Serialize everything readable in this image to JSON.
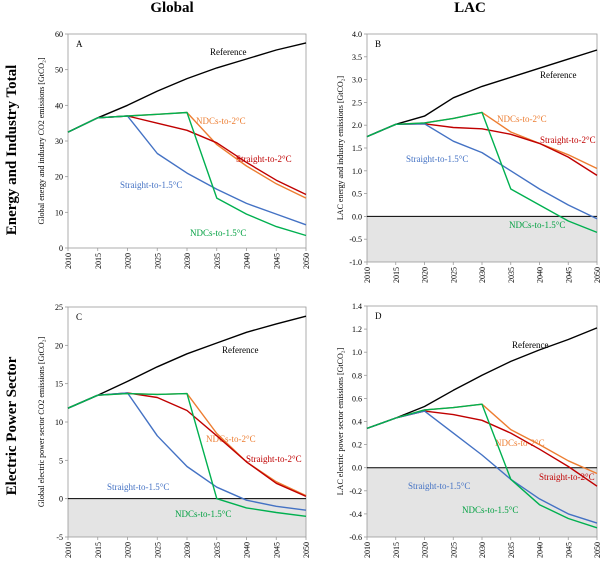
{
  "column_titles": [
    "Global",
    "LAC"
  ],
  "row_titles": [
    "Energy and Industry Total",
    "Electric Power Sector"
  ],
  "chart_data": [
    {
      "type": "line",
      "panel": "A",
      "ylabel": "Global energy and industry CO2 emissions [GtCO₂]",
      "x": [
        2010,
        2015,
        2020,
        2025,
        2030,
        2035,
        2040,
        2045,
        2050
      ],
      "ylim": [
        0,
        60
      ],
      "yticks": [
        0,
        10,
        20,
        30,
        40,
        50,
        60
      ],
      "shade_below_zero": false,
      "series": [
        {
          "name": "Reference",
          "color": "#000000",
          "label_color": "#000000",
          "values": [
            32.5,
            36.5,
            40.0,
            44.0,
            47.5,
            50.5,
            53.0,
            55.5,
            57.5
          ]
        },
        {
          "name": "NDCs-to-2°C",
          "color": "#ed7d31",
          "label_color": "#ed7d31",
          "values": [
            32.5,
            36.5,
            37.0,
            37.5,
            38.0,
            29.0,
            23.0,
            18.0,
            14.0
          ]
        },
        {
          "name": "Straight-to-2°C",
          "color": "#c00000",
          "label_color": "#c00000",
          "values": [
            32.5,
            36.5,
            37.0,
            35.0,
            33.0,
            29.5,
            24.0,
            19.0,
            15.0
          ]
        },
        {
          "name": "Straight-to-1.5°C",
          "color": "#4472c4",
          "label_color": "#4472c4",
          "values": [
            32.5,
            36.5,
            37.0,
            26.5,
            21.0,
            16.5,
            12.5,
            9.5,
            6.5
          ]
        },
        {
          "name": "NDCs-to-1.5°C",
          "color": "#00b050",
          "label_color": "#00a040",
          "values": [
            32.5,
            36.5,
            37.0,
            37.5,
            38.0,
            14.0,
            9.5,
            6.0,
            3.5
          ]
        }
      ]
    },
    {
      "type": "line",
      "panel": "B",
      "ylabel": "LAC energy and industry emissions [GtCO₂]",
      "x": [
        2010,
        2015,
        2020,
        2025,
        2030,
        2035,
        2040,
        2045,
        2050
      ],
      "ylim": [
        -1.0,
        4.0
      ],
      "yticks": [
        -1.0,
        -0.5,
        0.0,
        0.5,
        1.0,
        1.5,
        2.0,
        2.5,
        3.0,
        3.5,
        4.0
      ],
      "shade_below_zero": true,
      "series": [
        {
          "name": "Reference",
          "color": "#000000",
          "label_color": "#000000",
          "values": [
            1.75,
            2.02,
            2.2,
            2.6,
            2.85,
            3.05,
            3.25,
            3.45,
            3.65
          ]
        },
        {
          "name": "NDCs-to-2°C",
          "color": "#ed7d31",
          "label_color": "#ed7d31",
          "values": [
            1.75,
            2.02,
            2.05,
            2.15,
            2.28,
            1.85,
            1.6,
            1.35,
            1.05
          ]
        },
        {
          "name": "Straight-to-2°C",
          "color": "#c00000",
          "label_color": "#c00000",
          "values": [
            1.75,
            2.02,
            2.03,
            1.95,
            1.92,
            1.8,
            1.6,
            1.3,
            0.9
          ]
        },
        {
          "name": "Straight-to-1.5°C",
          "color": "#4472c4",
          "label_color": "#4472c4",
          "values": [
            1.75,
            2.02,
            2.03,
            1.65,
            1.4,
            1.0,
            0.6,
            0.25,
            -0.05
          ]
        },
        {
          "name": "NDCs-to-1.5°C",
          "color": "#00b050",
          "label_color": "#00a040",
          "values": [
            1.75,
            2.02,
            2.05,
            2.15,
            2.28,
            0.6,
            0.25,
            -0.1,
            -0.35
          ]
        }
      ]
    },
    {
      "type": "line",
      "panel": "C",
      "ylabel": "Global electric power sector CO2 emissions [GtCO₂]",
      "x": [
        2010,
        2015,
        2020,
        2025,
        2030,
        2035,
        2040,
        2045,
        2050
      ],
      "ylim": [
        -5,
        25
      ],
      "yticks": [
        -5,
        0,
        5,
        10,
        15,
        20,
        25
      ],
      "shade_below_zero": true,
      "series": [
        {
          "name": "Reference",
          "color": "#000000",
          "label_color": "#000000",
          "values": [
            11.8,
            13.5,
            15.3,
            17.2,
            18.9,
            20.3,
            21.7,
            22.8,
            23.8
          ]
        },
        {
          "name": "NDCs-to-2°C",
          "color": "#ed7d31",
          "label_color": "#ed7d31",
          "values": [
            11.8,
            13.5,
            13.7,
            13.6,
            13.7,
            8.5,
            4.8,
            2.2,
            0.4
          ]
        },
        {
          "name": "Straight-to-2°C",
          "color": "#c00000",
          "label_color": "#c00000",
          "values": [
            11.8,
            13.5,
            13.8,
            13.2,
            11.5,
            8.2,
            4.8,
            2.0,
            0.3
          ]
        },
        {
          "name": "Straight-to-1.5°C",
          "color": "#4472c4",
          "label_color": "#4472c4",
          "values": [
            11.8,
            13.5,
            13.8,
            8.2,
            4.2,
            1.5,
            -0.2,
            -1.0,
            -1.5
          ]
        },
        {
          "name": "NDCs-to-1.5°C",
          "color": "#00b050",
          "label_color": "#00a040",
          "values": [
            11.8,
            13.5,
            13.7,
            13.6,
            13.7,
            0.0,
            -1.2,
            -1.8,
            -2.3
          ]
        }
      ]
    },
    {
      "type": "line",
      "panel": "D",
      "ylabel": "LAC electric power sector emissions [GtCO₂]",
      "x": [
        2010,
        2015,
        2020,
        2025,
        2030,
        2035,
        2040,
        2045,
        2050
      ],
      "ylim": [
        -0.6,
        1.4
      ],
      "yticks": [
        -0.6,
        -0.4,
        -0.2,
        0.0,
        0.2,
        0.4,
        0.6,
        0.8,
        1.0,
        1.2,
        1.4
      ],
      "shade_below_zero": true,
      "series": [
        {
          "name": "Reference",
          "color": "#000000",
          "label_color": "#000000",
          "values": [
            0.34,
            0.43,
            0.53,
            0.67,
            0.8,
            0.92,
            1.02,
            1.11,
            1.21
          ]
        },
        {
          "name": "NDCs-to-2°C",
          "color": "#ed7d31",
          "label_color": "#ed7d31",
          "values": [
            0.34,
            0.43,
            0.5,
            0.52,
            0.55,
            0.33,
            0.2,
            0.06,
            -0.05
          ]
        },
        {
          "name": "Straight-to-2°C",
          "color": "#c00000",
          "label_color": "#c00000",
          "values": [
            0.34,
            0.43,
            0.49,
            0.46,
            0.41,
            0.3,
            0.16,
            0.01,
            -0.16
          ]
        },
        {
          "name": "Straight-to-1.5°C",
          "color": "#4472c4",
          "label_color": "#4472c4",
          "values": [
            0.34,
            0.43,
            0.49,
            0.3,
            0.11,
            -0.1,
            -0.27,
            -0.4,
            -0.48
          ]
        },
        {
          "name": "NDCs-to-1.5°C",
          "color": "#00b050",
          "label_color": "#00a040",
          "values": [
            0.34,
            0.43,
            0.5,
            0.52,
            0.55,
            -0.1,
            -0.32,
            -0.44,
            -0.52
          ]
        }
      ]
    }
  ]
}
